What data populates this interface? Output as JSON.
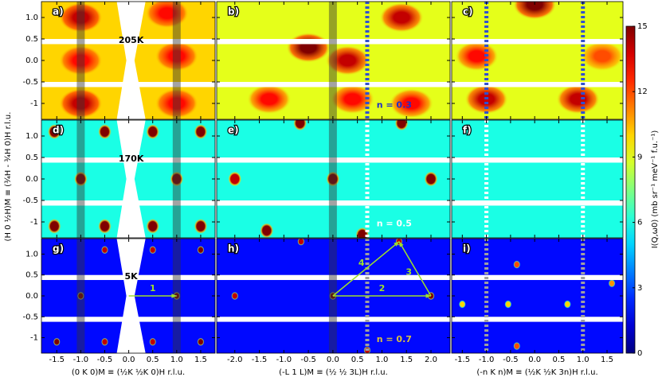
{
  "chart_data": {
    "type": "heatmap",
    "colormap": "jet",
    "ylabel": "(H 0 ½H)M ≡ (¾H - ¾H 0)H r.l.u.",
    "ylim": [
      -1.37,
      1.37
    ],
    "yticks": [
      -1.0,
      -0.5,
      {
        "value": 0,
        "label": "0.0"
      },
      0.5,
      {
        "value": 1,
        "label": "1.0"
      }
    ],
    "gaps": [
      [
        0.38,
        0.5
      ],
      [
        -0.62,
        -0.5
      ]
    ],
    "columns": [
      {
        "xlabel": "(0 K 0)M ≡ (½K ½K 0)H r.l.u.",
        "xlim": [
          -1.82,
          1.8
        ],
        "xticks": [
          -1.5,
          {
            "value": -1,
            "label": "-1.0"
          },
          -0.5,
          {
            "value": 0,
            "label": "0.0"
          },
          0.5,
          {
            "value": 1,
            "label": "1.0"
          },
          1.5
        ],
        "bands": [
          -1,
          1
        ],
        "dashes": []
      },
      {
        "xlabel": "(-L 1 L)M ≡ (½ ½ 3L)H r.l.u.",
        "xlim": [
          -2.37,
          2.39
        ],
        "xticks": [
          {
            "value": -2,
            "label": "-2.0"
          },
          -1.5,
          {
            "value": -1,
            "label": "-1.0"
          },
          -0.5,
          {
            "value": 0,
            "label": "0.0"
          },
          0.5,
          {
            "value": 1,
            "label": "1.0"
          },
          1.5,
          {
            "value": 2,
            "label": "2.0"
          }
        ],
        "bands": [
          0
        ],
        "dashes": [
          0.7
        ]
      },
      {
        "xlabel": "(-n K n)M ≡ (½K ½K 3n)H r.l.u.",
        "xlim": [
          -1.72,
          1.83
        ],
        "xticks": [
          -1.5,
          {
            "value": -1,
            "label": "-1.0"
          },
          -0.5,
          {
            "value": 0,
            "label": "0.0"
          },
          0.5,
          {
            "value": 1,
            "label": "1.0"
          },
          1.5
        ],
        "bands": [],
        "dashes": [
          -1,
          1
        ]
      }
    ],
    "panels": [
      {
        "label": "a)",
        "note": "205K",
        "background": 10,
        "x": [
          -1,
          0.8,
          -1,
          1,
          -1,
          1
        ],
        "y": [
          1,
          1.1,
          -1,
          -1,
          0,
          0.1
        ],
        "values": [
          14,
          13,
          14,
          13,
          13,
          13
        ]
      },
      {
        "label": "b)",
        "note": "n = 0.3",
        "note_color": "#1f2fc8",
        "dash_color": "#3050d0",
        "background": 9,
        "x": [
          -0.5,
          0.3,
          1.4,
          -1.3,
          0.4,
          1.6
        ],
        "y": [
          0.3,
          0,
          1,
          -0.9,
          -0.9,
          -1
        ],
        "values": [
          15,
          14,
          14,
          13,
          13,
          13
        ]
      },
      {
        "label": "c)",
        "dash_color": "#3050d0",
        "background": 9,
        "x": [
          0,
          -1,
          0.9,
          -1.2,
          1.4
        ],
        "y": [
          1.3,
          -0.9,
          -0.9,
          0.1,
          0.1
        ],
        "values": [
          15,
          14,
          14,
          13,
          12
        ]
      },
      {
        "label": "d)",
        "note": "170K",
        "background": 6,
        "x": [
          -1.55,
          -0.5,
          0.5,
          1.5,
          -1,
          1,
          -1.55,
          -0.5,
          0.5,
          1.5
        ],
        "y": [
          1.1,
          1.1,
          1.1,
          1.1,
          0,
          0,
          -1.1,
          -1.1,
          -1.1,
          -1.1
        ],
        "values": [
          15,
          15,
          15,
          15,
          15,
          15,
          15,
          15,
          15,
          15
        ]
      },
      {
        "label": "e)",
        "note": "n = 0.5",
        "note_color": "#ffffff",
        "dash_color": "#ffffff",
        "background": 6,
        "x": [
          -0.67,
          1.4,
          0,
          2,
          -2,
          -1.35,
          0.6
        ],
        "y": [
          1.3,
          1.3,
          0,
          0,
          0,
          -1.2,
          -1.3
        ],
        "values": [
          15,
          15,
          15,
          15,
          14,
          15,
          15
        ]
      },
      {
        "label": "f)",
        "dash_color": "#ffffff",
        "background": 6,
        "x": [],
        "y": [],
        "values": []
      },
      {
        "label": "g)",
        "note": "5K",
        "background": 2,
        "x": [
          -1.5,
          -0.5,
          0.5,
          1.5,
          -1,
          1,
          -1.5,
          -0.5,
          0.5,
          1.5
        ],
        "y": [
          1.1,
          1.1,
          1.1,
          1.1,
          0,
          0,
          -1.1,
          -1.1,
          -1.1,
          -1.1
        ],
        "values": [
          15,
          14,
          14,
          15,
          15,
          15,
          15,
          14,
          14,
          15
        ],
        "arrows": [
          {
            "label": "1",
            "from": [
              0,
              0
            ],
            "to": [
              1,
              0
            ]
          }
        ]
      },
      {
        "label": "h)",
        "note": "n = 0.7",
        "note_color": "#d8c040",
        "dash_color": "#a0a0a0",
        "background": 2,
        "x": [
          -2,
          0,
          2,
          -0.65,
          1.35,
          0.7
        ],
        "y": [
          0,
          0,
          0,
          1.3,
          1.3,
          -1.3
        ],
        "values": [
          14,
          15,
          15,
          14,
          14,
          14
        ],
        "arrows": [
          {
            "label": "2",
            "from": [
              0,
              0
            ],
            "to": [
              2,
              0
            ]
          },
          {
            "label": "3",
            "from": [
              2,
              0
            ],
            "to": [
              1.35,
              1.3
            ]
          },
          {
            "label": "4",
            "from": [
              0,
              0
            ],
            "to": [
              1.35,
              1.3
            ]
          }
        ]
      },
      {
        "label": "i)",
        "dash_color": "#a0a0a0",
        "background": 2,
        "x": [
          -0.37,
          -1.5,
          -0.55,
          0.68,
          1.6,
          -0.37
        ],
        "y": [
          0.75,
          -0.2,
          -0.2,
          -0.2,
          0.3,
          -1.2
        ],
        "values": [
          12,
          10,
          10,
          10,
          11,
          12
        ]
      }
    ],
    "colorbar": {
      "label": "I(Q,ω0) (mb sr⁻¹ meV⁻¹ f.u.⁻¹)",
      "lim": [
        0,
        15
      ],
      "ticks": [
        0,
        3,
        6,
        9,
        12,
        15
      ]
    }
  }
}
